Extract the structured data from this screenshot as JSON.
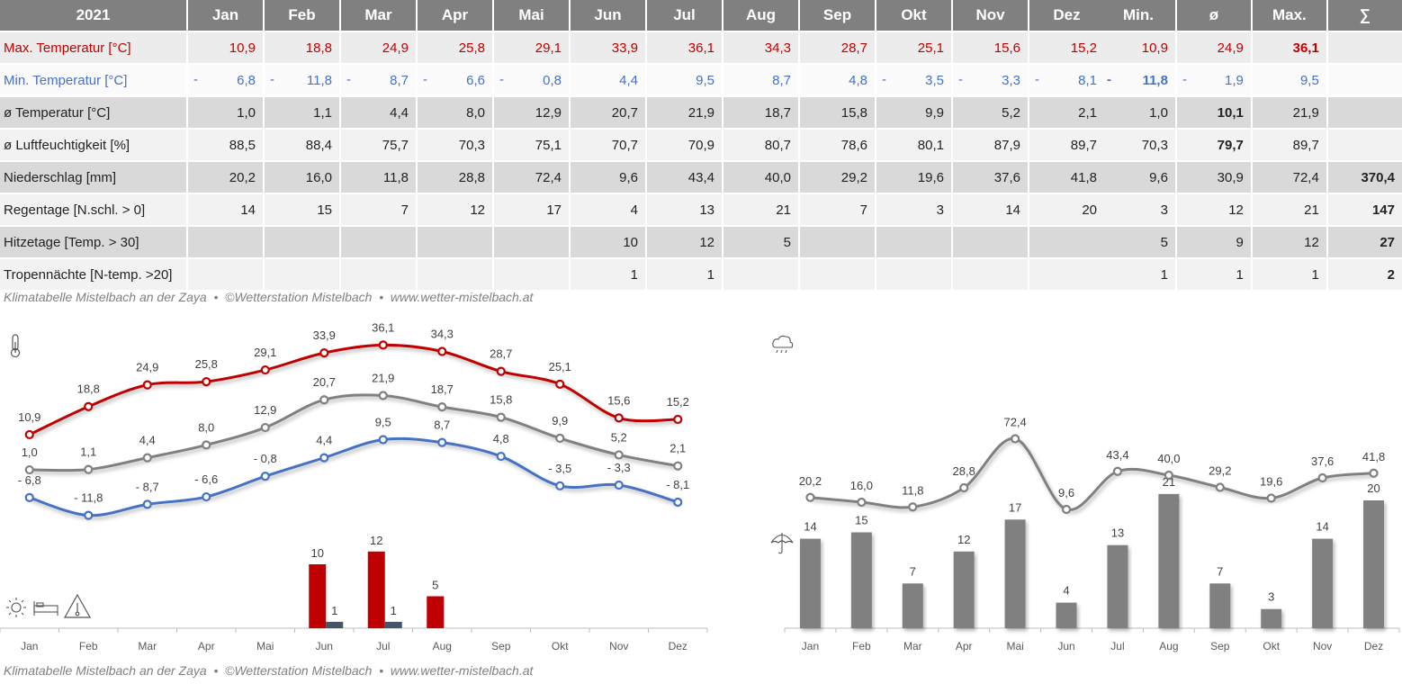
{
  "months": [
    "Jan",
    "Feb",
    "Mar",
    "Apr",
    "Mai",
    "Jun",
    "Jul",
    "Aug",
    "Sep",
    "Okt",
    "Nov",
    "Dez"
  ],
  "table": {
    "year": "2021",
    "rows": [
      {
        "key": "max",
        "label": "Max. Temperatur [°C]",
        "values": [
          "10,9",
          "18,8",
          "24,9",
          "25,8",
          "29,1",
          "33,9",
          "36,1",
          "34,3",
          "28,7",
          "25,1",
          "15,6",
          "15,2"
        ],
        "stats": [
          "10,9",
          "24,9",
          "36,1",
          ""
        ],
        "bold": [
          false,
          false,
          true,
          false
        ],
        "signs": [
          false,
          false,
          false,
          false,
          false,
          false,
          false,
          false,
          false,
          false,
          false,
          false
        ],
        "stat_signs": [
          false,
          false,
          false,
          false
        ]
      },
      {
        "key": "min",
        "label": "Min. Temperatur [°C]",
        "values": [
          "6,8",
          "11,8",
          "8,7",
          "6,6",
          "0,8",
          "4,4",
          "9,5",
          "8,7",
          "4,8",
          "3,5",
          "3,3",
          "8,1"
        ],
        "stats": [
          "11,8",
          "1,9",
          "9,5",
          ""
        ],
        "bold": [
          true,
          false,
          false,
          false
        ],
        "signs": [
          true,
          true,
          true,
          true,
          true,
          false,
          false,
          false,
          false,
          true,
          true,
          true
        ],
        "stat_signs": [
          true,
          true,
          false,
          false
        ]
      },
      {
        "key": "avg",
        "label": "ø Temperatur [°C]",
        "values": [
          "1,0",
          "1,1",
          "4,4",
          "8,0",
          "12,9",
          "20,7",
          "21,9",
          "18,7",
          "15,8",
          "9,9",
          "5,2",
          "2,1"
        ],
        "stats": [
          "1,0",
          "10,1",
          "21,9",
          ""
        ],
        "bold": [
          false,
          true,
          false,
          false
        ],
        "signs": [
          false,
          false,
          false,
          false,
          false,
          false,
          false,
          false,
          false,
          false,
          false,
          false
        ],
        "stat_signs": [
          false,
          false,
          false,
          false
        ]
      },
      {
        "key": "hum",
        "label": "ø Luftfeuchtigkeit [%]",
        "values": [
          "88,5",
          "88,4",
          "75,7",
          "70,3",
          "75,1",
          "70,7",
          "70,9",
          "80,7",
          "78,6",
          "80,1",
          "87,9",
          "89,7"
        ],
        "stats": [
          "70,3",
          "79,7",
          "89,7",
          ""
        ],
        "bold": [
          false,
          true,
          false,
          false
        ],
        "signs": [
          false,
          false,
          false,
          false,
          false,
          false,
          false,
          false,
          false,
          false,
          false,
          false
        ],
        "stat_signs": [
          false,
          false,
          false,
          false
        ]
      },
      {
        "key": "pre",
        "label": "Niederschlag [mm]",
        "values": [
          "20,2",
          "16,0",
          "11,8",
          "28,8",
          "72,4",
          "9,6",
          "43,4",
          "40,0",
          "29,2",
          "19,6",
          "37,6",
          "41,8"
        ],
        "stats": [
          "9,6",
          "30,9",
          "72,4",
          "370,4"
        ],
        "bold": [
          false,
          false,
          false,
          true
        ],
        "signs": [
          false,
          false,
          false,
          false,
          false,
          false,
          false,
          false,
          false,
          false,
          false,
          false
        ],
        "stat_signs": [
          false,
          false,
          false,
          false
        ]
      },
      {
        "key": "rain",
        "label": "Regentage [N.schl. > 0]",
        "values": [
          "14",
          "15",
          "7",
          "12",
          "17",
          "4",
          "13",
          "21",
          "7",
          "3",
          "14",
          "20"
        ],
        "stats": [
          "3",
          "12",
          "21",
          "147"
        ],
        "bold": [
          false,
          false,
          false,
          true
        ],
        "signs": [
          false,
          false,
          false,
          false,
          false,
          false,
          false,
          false,
          false,
          false,
          false,
          false
        ],
        "stat_signs": [
          false,
          false,
          false,
          false
        ]
      },
      {
        "key": "hot",
        "label": "Hitzetage [Temp. > 30]",
        "values": [
          "",
          "",
          "",
          "",
          "",
          "10",
          "12",
          "5",
          "",
          "",
          "",
          ""
        ],
        "stats": [
          "5",
          "9",
          "12",
          "27"
        ],
        "bold": [
          false,
          false,
          false,
          true
        ],
        "signs": [
          false,
          false,
          false,
          false,
          false,
          false,
          false,
          false,
          false,
          false,
          false,
          false
        ],
        "stat_signs": [
          false,
          false,
          false,
          false
        ]
      },
      {
        "key": "trop",
        "label": "Tropennächte [N-temp. >20]",
        "values": [
          "",
          "",
          "",
          "",
          "",
          "1",
          "1",
          "",
          "",
          "",
          "",
          ""
        ],
        "stats": [
          "1",
          "1",
          "1",
          "2"
        ],
        "bold": [
          false,
          false,
          false,
          true
        ],
        "signs": [
          false,
          false,
          false,
          false,
          false,
          false,
          false,
          false,
          false,
          false,
          false,
          false
        ],
        "stat_signs": [
          false,
          false,
          false,
          false
        ]
      }
    ],
    "stat_headers": [
      "Min.",
      "ø",
      "Max.",
      "∑"
    ]
  },
  "captions": {
    "top": "Klimatabelle Mistelbach an der Zaya  •  ©Wetterstation Mistelbach  •  www.wetter-mistelbach.at",
    "bottom": "Klimatabelle Mistelbach an der Zaya  •  ©Wetterstation Mistelbach  •  www.wetter-mistelbach.at"
  },
  "icons": [
    "thermometer-icon",
    "sun-icon",
    "bed-icon",
    "warning-thermometer-icon",
    "cloud-rain-icon",
    "umbrella-icon"
  ],
  "colors": {
    "max": "#c00000",
    "min": "#4472c4",
    "avg": "#808080",
    "hot": "#c00000",
    "trop": "#44546a",
    "rain": "#808080",
    "precip": "#808080"
  },
  "chart_data": [
    {
      "type": "line",
      "x": [
        "Jan",
        "Feb",
        "Mar",
        "Apr",
        "Mai",
        "Jun",
        "Jul",
        "Aug",
        "Sep",
        "Okt",
        "Nov",
        "Dez"
      ],
      "series": [
        {
          "values": [
            10.9,
            18.8,
            24.9,
            25.8,
            29.1,
            33.9,
            36.1,
            34.3,
            28.7,
            25.1,
            15.6,
            15.2
          ],
          "labels": [
            "10,9",
            "18,8",
            "24,9",
            "25,8",
            "29,1",
            "33,9",
            "36,1",
            "34,3",
            "28,7",
            "25,1",
            "15,6",
            "15,2"
          ]
        },
        {
          "values": [
            1.0,
            1.1,
            4.4,
            8.0,
            12.9,
            20.7,
            21.9,
            18.7,
            15.8,
            9.9,
            5.2,
            2.1
          ],
          "labels": [
            "1,0",
            "1,1",
            "4,4",
            "8,0",
            "12,9",
            "20,7",
            "21,9",
            "18,7",
            "15,8",
            "9,9",
            "5,2",
            "2,1"
          ]
        },
        {
          "values": [
            -6.8,
            -11.8,
            -8.7,
            -6.6,
            -0.8,
            4.4,
            9.5,
            8.7,
            4.8,
            -3.5,
            -3.3,
            -8.1
          ],
          "labels": [
            "- 6,8",
            "- 11,8",
            "- 8,7",
            "- 6,6",
            "- 0,8",
            "4,4",
            "9,5",
            "8,7",
            "4,8",
            "- 3,5",
            "- 3,3",
            "- 8,1"
          ]
        }
      ],
      "bars": [
        {
          "values": [
            null,
            null,
            null,
            null,
            null,
            10,
            12,
            5,
            null,
            null,
            null,
            null
          ],
          "labels": [
            "",
            "",
            "",
            "",
            "",
            "10",
            "12",
            "5",
            "",
            "",
            "",
            ""
          ]
        },
        {
          "values": [
            null,
            null,
            null,
            null,
            null,
            1,
            1,
            null,
            null,
            null,
            null,
            null
          ],
          "labels": [
            "",
            "",
            "",
            "",
            "",
            "1",
            "1",
            "",
            "",
            "",
            "",
            ""
          ]
        }
      ],
      "legend": "none",
      "grid": false
    },
    {
      "type": "bar",
      "x": [
        "Jan",
        "Feb",
        "Mar",
        "Apr",
        "Mai",
        "Jun",
        "Jul",
        "Aug",
        "Sep",
        "Okt",
        "Nov",
        "Dez"
      ],
      "series": [
        {
          "type": "line",
          "values": [
            20.2,
            16.0,
            11.8,
            28.8,
            72.4,
            9.6,
            43.4,
            40.0,
            29.2,
            19.6,
            37.6,
            41.8
          ],
          "labels": [
            "20,2",
            "16,0",
            "11,8",
            "28,8",
            "72,4",
            "9,6",
            "43,4",
            "40,0",
            "29,2",
            "19,6",
            "37,6",
            "41,8"
          ]
        },
        {
          "type": "bar",
          "values": [
            14,
            15,
            7,
            12,
            17,
            4,
            13,
            21,
            7,
            3,
            14,
            20
          ],
          "labels": [
            "14",
            "15",
            "7",
            "12",
            "17",
            "4",
            "13",
            "21",
            "7",
            "3",
            "14",
            "20"
          ]
        }
      ],
      "legend": "none",
      "grid": false
    }
  ]
}
